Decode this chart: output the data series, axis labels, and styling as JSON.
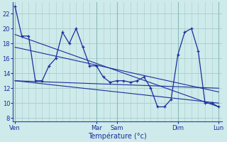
{
  "background_color": "#ceeaea",
  "grid_color": "#a8cccc",
  "line_color": "#1a2d9e",
  "xlabel": "Température (°c)",
  "xlabel_color": "#1a2d9e",
  "tick_color": "#1a2d9e",
  "ylabel_ticks": [
    8,
    10,
    12,
    14,
    16,
    18,
    20,
    22
  ],
  "xtick_labels": [
    "Ven",
    "Mar",
    "Sam",
    "Dim",
    "Lun"
  ],
  "xtick_positions": [
    0,
    12,
    15,
    24,
    30
  ],
  "series1": [
    23,
    19,
    19,
    13,
    13,
    15,
    16,
    19.5,
    18,
    20,
    17.5,
    15,
    15,
    13.5,
    12.8,
    13,
    13,
    12.8,
    13,
    13.5,
    12,
    9.5,
    9.5,
    10.5,
    16.5,
    19.5,
    20,
    17,
    10,
    10,
    9.5
  ],
  "series2_x": [
    0,
    30
  ],
  "series2_y": [
    19.2,
    9.5
  ],
  "series3_x": [
    0,
    30
  ],
  "series3_y": [
    17.5,
    11.5
  ],
  "series4_x": [
    0,
    30
  ],
  "series4_y": [
    13.0,
    12.0
  ],
  "series5_x": [
    0,
    30
  ],
  "series5_y": [
    13.0,
    10.0
  ],
  "n_points": 31,
  "ylim": [
    7.5,
    23.5
  ],
  "xlim": [
    -0.3,
    30.5
  ]
}
